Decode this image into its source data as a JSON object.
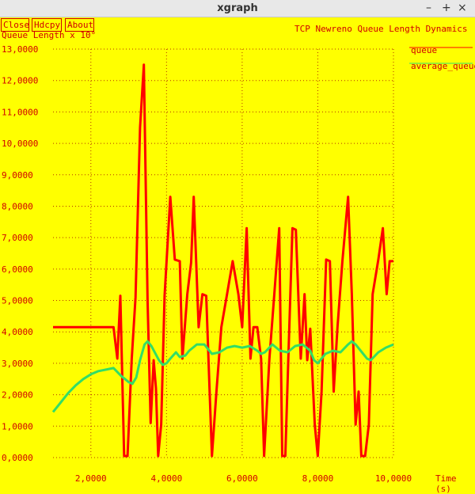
{
  "window": {
    "title": "xgraph",
    "controls": [
      "–",
      "+",
      "×"
    ]
  },
  "toolbar": {
    "close": "Close",
    "hdcpy": "Hdcpy",
    "about": "About"
  },
  "chart_data": {
    "type": "line",
    "title": "TCP Newreno Queue Length Dynamics",
    "ylabel": "Queue Length x 10°",
    "xlabel": "Time (s)",
    "xlim": [
      1.0,
      10.0
    ],
    "ylim": [
      0,
      13
    ],
    "xticks": [
      2,
      4,
      6,
      8,
      10
    ],
    "xtick_labels": [
      "2,0000",
      "4,0000",
      "6,0000",
      "8,0000",
      "10,0000"
    ],
    "yticks": [
      0,
      1,
      2,
      3,
      4,
      5,
      6,
      7,
      8,
      9,
      10,
      11,
      12,
      13
    ],
    "ytick_labels": [
      "0,0000",
      "1,0000",
      "2,0000",
      "3,0000",
      "4,0000",
      "5,0000",
      "6,0000",
      "7,0000",
      "8,0000",
      "9,0000",
      "10,0000",
      "11,0000",
      "12,0000",
      "13,0000"
    ],
    "grid": true,
    "legend_position": "right",
    "series": [
      {
        "name": "queue",
        "color": "#ff0000",
        "points": [
          [
            1.0,
            4.15
          ],
          [
            2.6,
            4.15
          ],
          [
            2.7,
            3.15
          ],
          [
            2.78,
            5.15
          ],
          [
            2.88,
            0.05
          ],
          [
            2.97,
            0.05
          ],
          [
            3.08,
            3.15
          ],
          [
            3.18,
            5.1
          ],
          [
            3.3,
            10.5
          ],
          [
            3.4,
            12.5
          ],
          [
            3.5,
            5.0
          ],
          [
            3.58,
            1.1
          ],
          [
            3.66,
            3.1
          ],
          [
            3.72,
            2.2
          ],
          [
            3.78,
            0.05
          ],
          [
            3.86,
            1.05
          ],
          [
            3.95,
            5.15
          ],
          [
            4.1,
            8.3
          ],
          [
            4.22,
            6.3
          ],
          [
            4.35,
            6.25
          ],
          [
            4.42,
            3.15
          ],
          [
            4.55,
            5.2
          ],
          [
            4.65,
            6.2
          ],
          [
            4.72,
            8.3
          ],
          [
            4.85,
            4.15
          ],
          [
            4.95,
            5.2
          ],
          [
            5.05,
            5.15
          ],
          [
            5.2,
            0.05
          ],
          [
            5.32,
            2.1
          ],
          [
            5.45,
            4.15
          ],
          [
            5.6,
            5.2
          ],
          [
            5.75,
            6.25
          ],
          [
            5.9,
            5.2
          ],
          [
            6.0,
            4.15
          ],
          [
            6.12,
            7.3
          ],
          [
            6.22,
            3.15
          ],
          [
            6.3,
            4.15
          ],
          [
            6.4,
            4.15
          ],
          [
            6.5,
            3.15
          ],
          [
            6.58,
            0.05
          ],
          [
            6.72,
            3.15
          ],
          [
            6.85,
            5.2
          ],
          [
            6.98,
            7.3
          ],
          [
            7.06,
            0.05
          ],
          [
            7.14,
            0.05
          ],
          [
            7.22,
            3.15
          ],
          [
            7.33,
            7.3
          ],
          [
            7.42,
            7.25
          ],
          [
            7.55,
            3.15
          ],
          [
            7.65,
            5.2
          ],
          [
            7.72,
            3.1
          ],
          [
            7.8,
            4.1
          ],
          [
            7.92,
            1.05
          ],
          [
            8.0,
            0.05
          ],
          [
            8.1,
            2.1
          ],
          [
            8.22,
            6.3
          ],
          [
            8.32,
            6.25
          ],
          [
            8.42,
            2.1
          ],
          [
            8.52,
            4.15
          ],
          [
            8.65,
            6.25
          ],
          [
            8.8,
            8.3
          ],
          [
            8.9,
            5.2
          ],
          [
            9.0,
            1.05
          ],
          [
            9.08,
            2.1
          ],
          [
            9.15,
            0.05
          ],
          [
            9.25,
            0.05
          ],
          [
            9.35,
            1.05
          ],
          [
            9.45,
            5.2
          ],
          [
            9.6,
            6.3
          ],
          [
            9.72,
            7.3
          ],
          [
            9.82,
            5.2
          ],
          [
            9.9,
            6.25
          ],
          [
            10.0,
            6.25
          ]
        ]
      },
      {
        "name": "average_queue",
        "color": "#33dd66",
        "points": [
          [
            1.0,
            1.45
          ],
          [
            1.2,
            1.75
          ],
          [
            1.4,
            2.05
          ],
          [
            1.6,
            2.3
          ],
          [
            1.8,
            2.5
          ],
          [
            2.0,
            2.65
          ],
          [
            2.2,
            2.75
          ],
          [
            2.4,
            2.8
          ],
          [
            2.6,
            2.85
          ],
          [
            2.8,
            2.6
          ],
          [
            3.0,
            2.4
          ],
          [
            3.1,
            2.35
          ],
          [
            3.2,
            2.55
          ],
          [
            3.3,
            3.1
          ],
          [
            3.42,
            3.6
          ],
          [
            3.5,
            3.7
          ],
          [
            3.6,
            3.55
          ],
          [
            3.8,
            3.1
          ],
          [
            3.9,
            2.95
          ],
          [
            4.0,
            3.0
          ],
          [
            4.1,
            3.15
          ],
          [
            4.25,
            3.35
          ],
          [
            4.35,
            3.2
          ],
          [
            4.5,
            3.25
          ],
          [
            4.6,
            3.4
          ],
          [
            4.8,
            3.6
          ],
          [
            5.0,
            3.6
          ],
          [
            5.2,
            3.3
          ],
          [
            5.4,
            3.35
          ],
          [
            5.6,
            3.5
          ],
          [
            5.8,
            3.55
          ],
          [
            6.0,
            3.5
          ],
          [
            6.2,
            3.55
          ],
          [
            6.4,
            3.4
          ],
          [
            6.5,
            3.3
          ],
          [
            6.6,
            3.35
          ],
          [
            6.8,
            3.6
          ],
          [
            7.0,
            3.4
          ],
          [
            7.2,
            3.35
          ],
          [
            7.4,
            3.55
          ],
          [
            7.6,
            3.6
          ],
          [
            7.8,
            3.4
          ],
          [
            7.9,
            3.1
          ],
          [
            8.0,
            3.0
          ],
          [
            8.2,
            3.3
          ],
          [
            8.4,
            3.4
          ],
          [
            8.6,
            3.35
          ],
          [
            8.8,
            3.6
          ],
          [
            8.9,
            3.7
          ],
          [
            9.0,
            3.6
          ],
          [
            9.2,
            3.3
          ],
          [
            9.3,
            3.15
          ],
          [
            9.4,
            3.1
          ],
          [
            9.6,
            3.35
          ],
          [
            9.8,
            3.5
          ],
          [
            10.0,
            3.6
          ]
        ]
      }
    ]
  }
}
